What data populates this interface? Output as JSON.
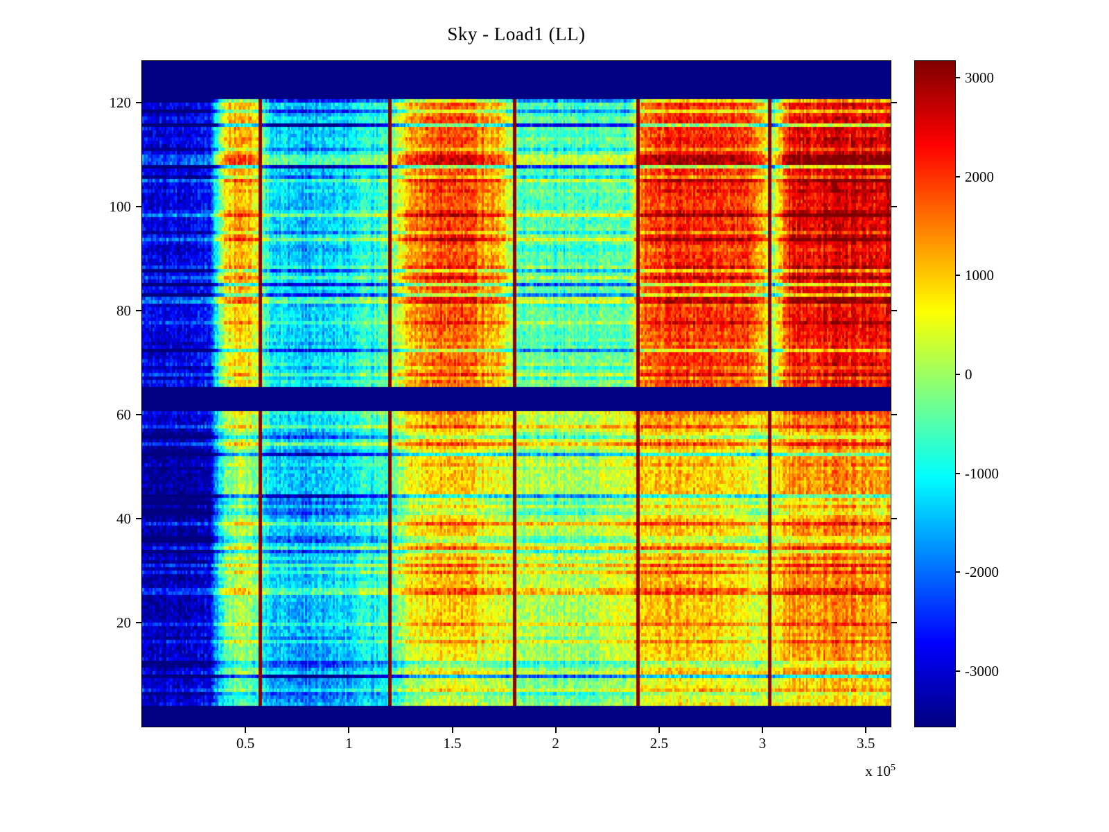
{
  "figure": {
    "background": "#ffffff"
  },
  "chart_data": {
    "type": "heatmap",
    "title": "Sky - Load1 (LL)",
    "xlabel": "",
    "ylabel": "",
    "axes": {
      "xlim": [
        0,
        362000
      ],
      "ylim": [
        0,
        128
      ],
      "clim": [
        -3561,
        3168
      ],
      "grid": "off"
    },
    "x_ticks": {
      "values": [
        50000,
        100000,
        150000,
        200000,
        250000,
        300000,
        350000
      ],
      "labels": [
        "0.5",
        "1",
        "1.5",
        "2",
        "2.5",
        "3",
        "3.5"
      ]
    },
    "y_ticks": {
      "values": [
        20,
        40,
        60,
        80,
        100,
        120
      ],
      "labels": [
        "20",
        "40",
        "60",
        "80",
        "100",
        "120"
      ]
    },
    "exponent_label": {
      "base": "x 10",
      "exp": "5"
    },
    "colorbar": {
      "position": "right",
      "ticks": {
        "values": [
          3000,
          2000,
          1000,
          0,
          -1000,
          -2000,
          -3000
        ],
        "labels": [
          "3000",
          "2000",
          "1000",
          "0",
          "-1000",
          "-2000",
          "-3000"
        ]
      },
      "colormap": "jet",
      "stops": [
        [
          0.0,
          "#000080"
        ],
        [
          0.125,
          "#0000FF"
        ],
        [
          0.375,
          "#00FFFF"
        ],
        [
          0.625,
          "#FFFF00"
        ],
        [
          0.875,
          "#FF0000"
        ],
        [
          1.0,
          "#800000"
        ]
      ]
    },
    "heatmap": {
      "masked_y_bands": [
        [
          0,
          3.7
        ],
        [
          60.8,
          65.3
        ],
        [
          121,
          128
        ]
      ],
      "red_line_x": [
        57000,
        120000,
        180000,
        240000,
        303000
      ],
      "red_line_value": 3100,
      "red_line_halfwidth_x": 900,
      "grid": {
        "x": [
          0,
          15000,
          32000,
          40000,
          47000,
          55000,
          62000,
          80000,
          100000,
          118000,
          128000,
          143000,
          158000,
          172000,
          182000,
          200000,
          218000,
          235000,
          243000,
          260000,
          278000,
          296000,
          305000,
          313000,
          335000,
          362000
        ],
        "y": [
          5,
          12,
          20,
          30,
          40,
          50,
          58,
          66,
          72,
          82,
          92,
          102,
          112,
          121
        ],
        "values": [
          [
            -3100,
            -3000,
            -2800,
            -1000,
            -500,
            -800,
            -1600,
            -1800,
            -1600,
            -1200,
            -200,
            300,
            300,
            100,
            -200,
            -400,
            -300,
            0,
            500,
            600,
            500,
            400,
            400,
            800,
            900,
            850
          ],
          [
            -3200,
            -3100,
            -2900,
            -600,
            0,
            -400,
            -1500,
            -1800,
            -1500,
            -1000,
            100,
            600,
            600,
            300,
            0,
            -200,
            -100,
            300,
            800,
            900,
            800,
            500,
            500,
            1200,
            1300,
            1200
          ],
          [
            -3300,
            -3250,
            -3050,
            -400,
            200,
            -300,
            -1400,
            -1600,
            -1300,
            -800,
            400,
            900,
            900,
            500,
            100,
            -100,
            0,
            500,
            1000,
            1000,
            900,
            500,
            600,
            1300,
            1400,
            1250
          ],
          [
            -3400,
            -3350,
            -3150,
            -300,
            300,
            -200,
            -1300,
            -1500,
            -1200,
            -700,
            500,
            1000,
            1000,
            600,
            200,
            0,
            100,
            600,
            1050,
            1050,
            950,
            550,
            650,
            1350,
            1450,
            1300
          ],
          [
            -3450,
            -3400,
            -3250,
            -350,
            250,
            -250,
            -1350,
            -1550,
            -1250,
            -750,
            450,
            950,
            950,
            550,
            150,
            -50,
            50,
            550,
            1000,
            1000,
            900,
            500,
            600,
            1300,
            1400,
            1250
          ],
          [
            -3400,
            -3380,
            -3200,
            -300,
            300,
            -200,
            -1250,
            -1450,
            -1150,
            -650,
            500,
            1000,
            1000,
            600,
            200,
            0,
            100,
            600,
            1050,
            1050,
            950,
            550,
            650,
            1350,
            1450,
            1300
          ],
          [
            -3250,
            -3200,
            -3000,
            -150,
            450,
            -100,
            -1150,
            -1350,
            -1050,
            -550,
            600,
            1100,
            1100,
            700,
            300,
            100,
            200,
            700,
            1150,
            1150,
            1050,
            650,
            750,
            1400,
            1500,
            1400
          ],
          [
            -2900,
            -2850,
            -2650,
            300,
            900,
            300,
            -1000,
            -1250,
            -1000,
            -500,
            900,
            1500,
            1500,
            1000,
            -300,
            -500,
            -400,
            -300,
            1600,
            1900,
            1800,
            1700,
            -100,
            2000,
            2200,
            2100
          ],
          [
            -3000,
            -2950,
            -2750,
            450,
            1050,
            450,
            -1050,
            -1300,
            -1050,
            -550,
            1000,
            1650,
            1650,
            1100,
            -350,
            -550,
            -450,
            -350,
            1700,
            2000,
            1900,
            1800,
            -100,
            2150,
            2350,
            2250
          ],
          [
            -2850,
            -2800,
            -2600,
            600,
            1200,
            600,
            -1100,
            -1350,
            -1100,
            -600,
            1100,
            1800,
            1750,
            1200,
            -400,
            -600,
            -500,
            -400,
            1750,
            2100,
            2000,
            1900,
            0,
            2250,
            2450,
            2350
          ],
          [
            -2950,
            -2900,
            -2700,
            750,
            1350,
            750,
            -1150,
            -1400,
            -1150,
            -650,
            1150,
            1900,
            1850,
            1250,
            -450,
            -650,
            -550,
            -450,
            1800,
            2150,
            2050,
            1950,
            0,
            2350,
            2550,
            2450
          ],
          [
            -3050,
            -3000,
            -2800,
            600,
            1200,
            600,
            -1250,
            -1550,
            -1300,
            -750,
            1100,
            1800,
            1750,
            1200,
            -500,
            -700,
            -600,
            -500,
            1750,
            2100,
            2000,
            1900,
            -100,
            2350,
            2550,
            2450
          ],
          [
            -2900,
            -2850,
            -2650,
            800,
            1400,
            800,
            -1100,
            -1400,
            -1150,
            -650,
            1150,
            1900,
            1850,
            1250,
            -400,
            -600,
            -500,
            -400,
            1850,
            2200,
            2100,
            2000,
            0,
            2450,
            2650,
            2550
          ],
          [
            -2750,
            -2700,
            -2500,
            950,
            1550,
            950,
            -1000,
            -1300,
            -1050,
            -550,
            1250,
            2000,
            1950,
            1350,
            -300,
            -500,
            -400,
            -300,
            1900,
            2250,
            2150,
            2050,
            100,
            2500,
            2700,
            2600
          ]
        ]
      },
      "noise": {
        "seed": 42,
        "rows": 192,
        "cols": 432,
        "row_amp": 520,
        "col_amp": 300,
        "cell_amp": 480
      }
    }
  }
}
